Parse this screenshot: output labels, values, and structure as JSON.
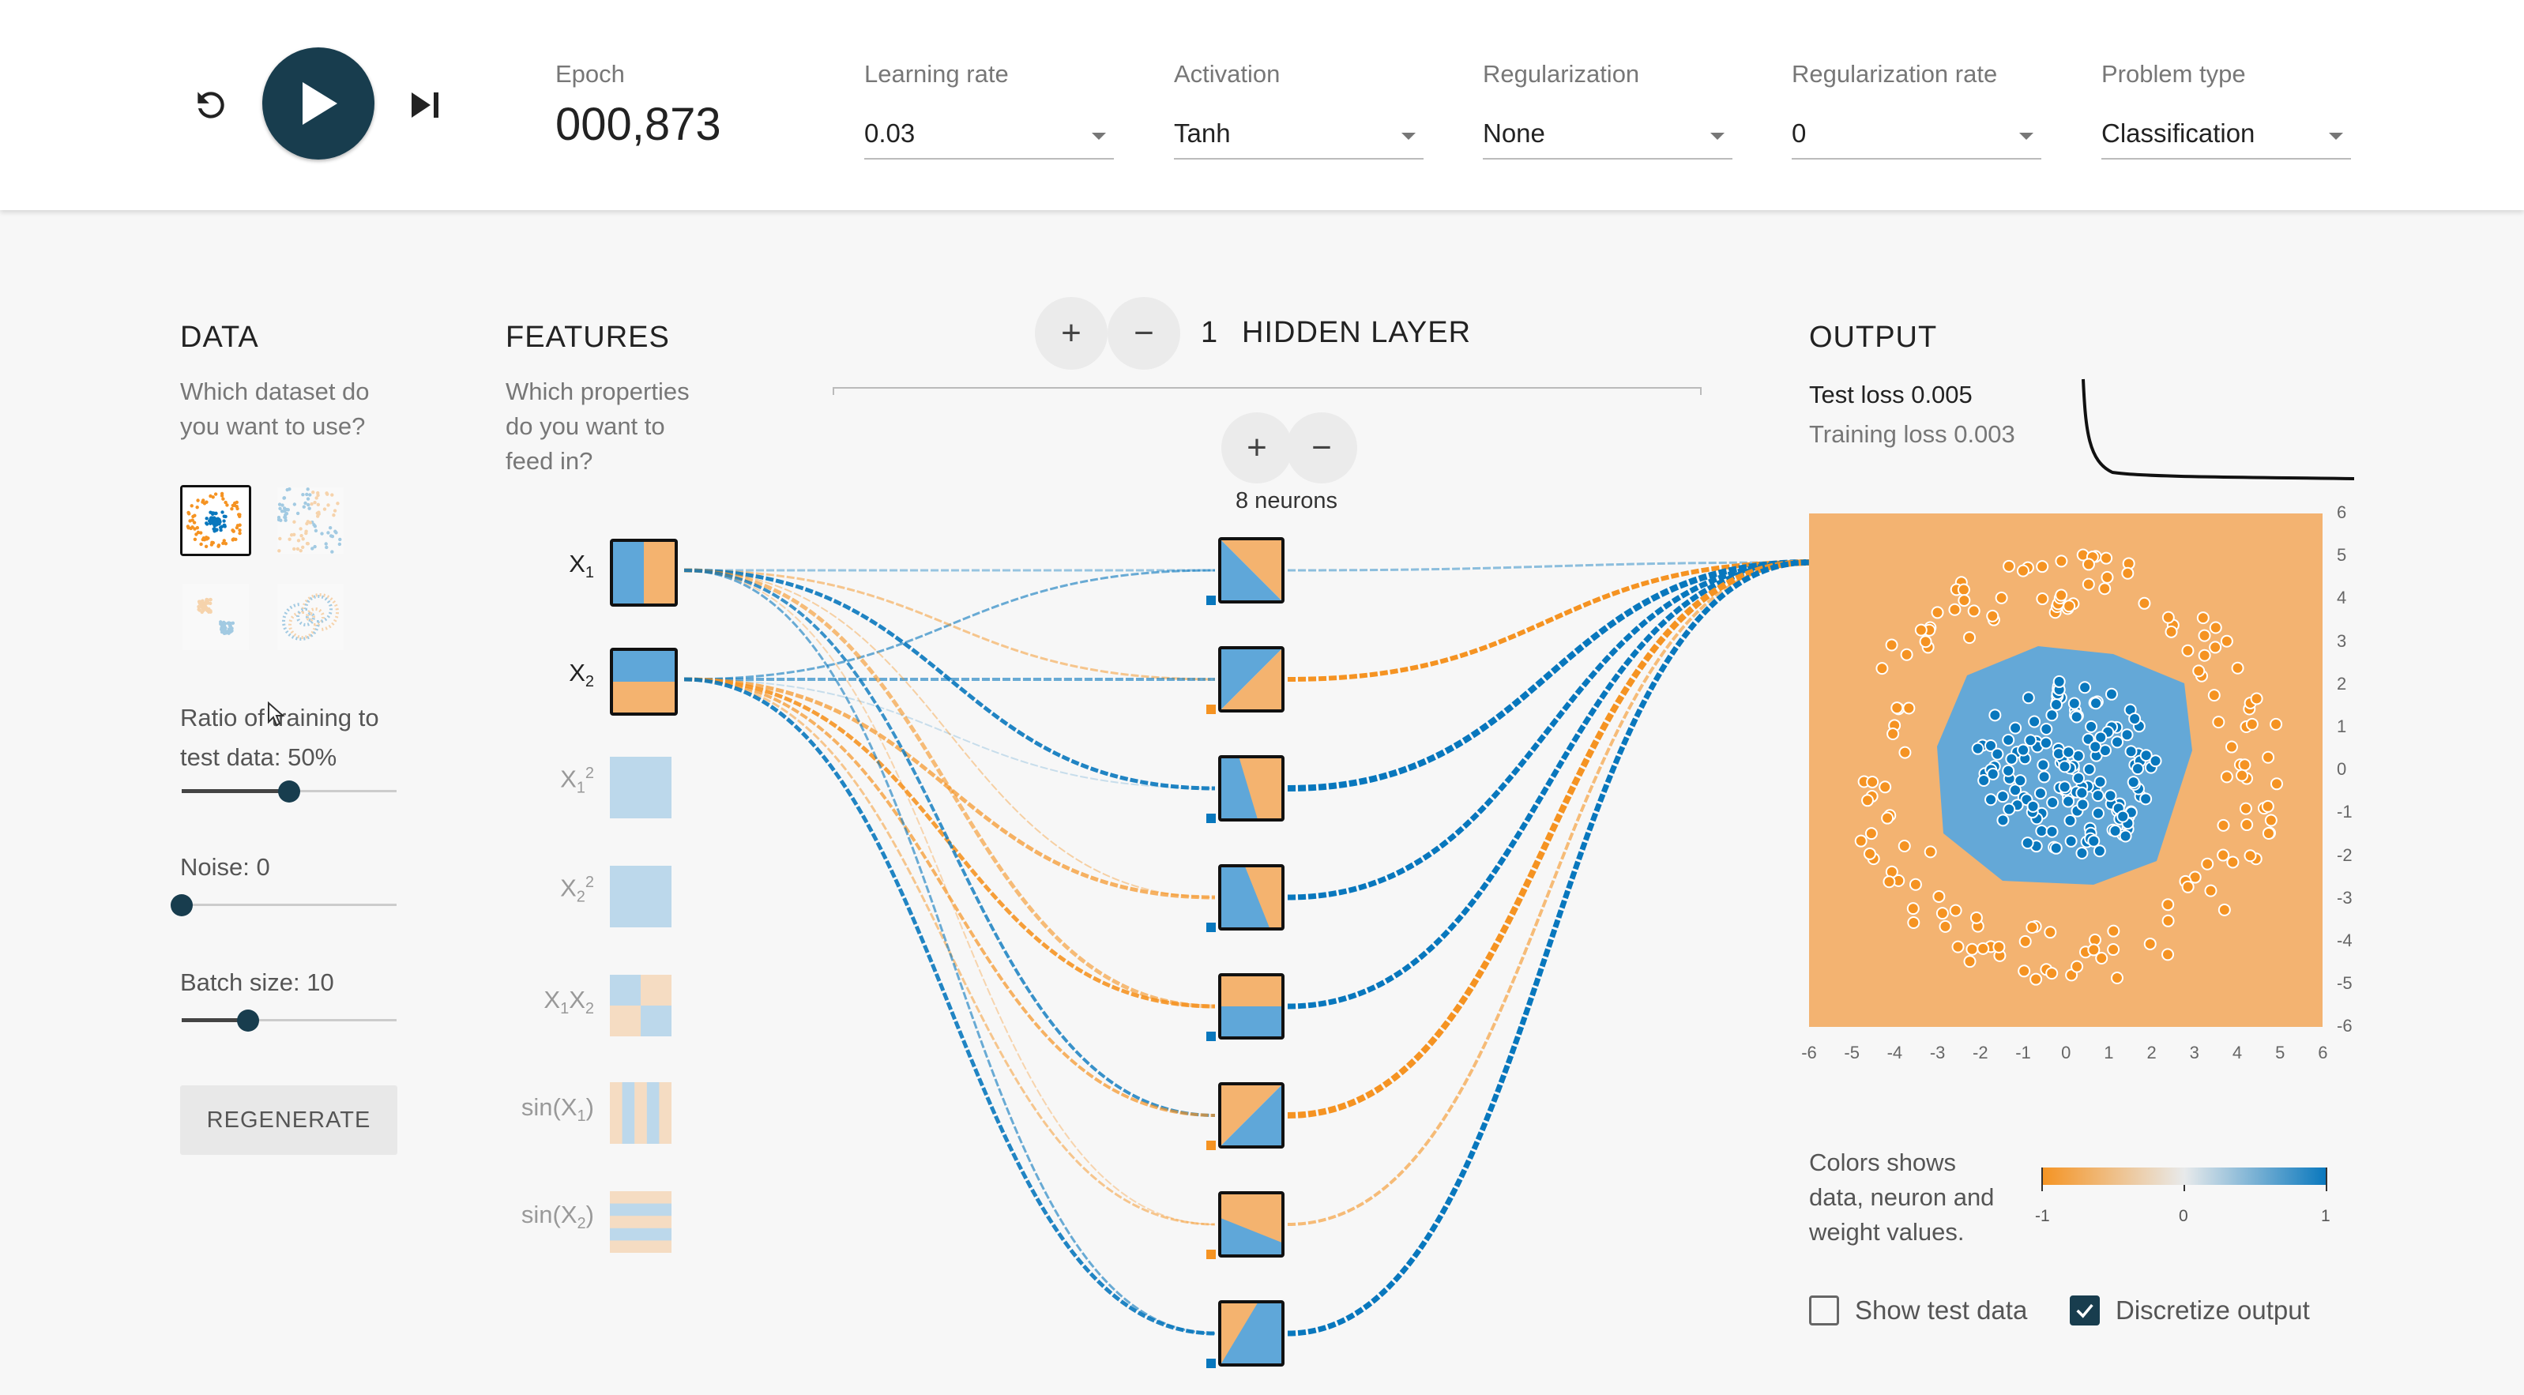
{
  "topbar": {
    "epoch_label": "Epoch",
    "epoch_value": "000,873",
    "learning_rate": {
      "label": "Learning rate",
      "value": "0.03"
    },
    "activation": {
      "label": "Activation",
      "value": "Tanh"
    },
    "regularization": {
      "label": "Regularization",
      "value": "None"
    },
    "regularization_rate": {
      "label": "Regularization rate",
      "value": "0"
    },
    "problem_type": {
      "label": "Problem type",
      "value": "Classification"
    }
  },
  "data_panel": {
    "title": "DATA",
    "subtitle_line1": "Which dataset do",
    "subtitle_line2": "you want to use?",
    "datasets": [
      "circle",
      "xor",
      "gaussian",
      "spiral"
    ],
    "selected_dataset": "circle",
    "ratio_label_line1": "Ratio of training to",
    "ratio_label_line2": "test data:  50%",
    "ratio_percent": 50,
    "noise_label": "Noise:  0",
    "noise_value": 0,
    "batch_label": "Batch size:  10",
    "batch_value": 10,
    "regenerate_label": "REGENERATE"
  },
  "features_panel": {
    "title": "FEATURES",
    "subtitle_line1": "Which properties",
    "subtitle_line2": "do you want to",
    "subtitle_line3": "feed in?",
    "features": [
      {
        "id": "x1",
        "active": true
      },
      {
        "id": "x2",
        "active": true
      },
      {
        "id": "x1sq",
        "active": false
      },
      {
        "id": "x2sq",
        "active": false
      },
      {
        "id": "x1x2",
        "active": false
      },
      {
        "id": "sinx1",
        "active": false
      },
      {
        "id": "sinx2",
        "active": false
      }
    ]
  },
  "network": {
    "hidden_layer_count": "1",
    "hidden_layer_label": "HIDDEN LAYER",
    "neurons_label": "8 neurons",
    "neuron_count": 8
  },
  "output_panel": {
    "title": "OUTPUT",
    "test_loss": "Test loss 0.005",
    "training_loss": "Training loss 0.003",
    "y_ticks": [
      "6",
      "5",
      "4",
      "3",
      "2",
      "1",
      "0",
      "-1",
      "-2",
      "-3",
      "-4",
      "-5",
      "-6"
    ],
    "x_ticks": [
      "-6",
      "-5",
      "-4",
      "-3",
      "-2",
      "-1",
      "0",
      "1",
      "2",
      "3",
      "4",
      "5",
      "6"
    ],
    "legend_line1": "Colors shows",
    "legend_line2": "data, neuron and",
    "legend_line3": "weight values.",
    "legend_ticks": [
      "-1",
      "0",
      "1"
    ],
    "show_test_data": {
      "label": "Show test data",
      "checked": false
    },
    "discretize_output": {
      "label": "Discretize output",
      "checked": true
    }
  },
  "colors": {
    "negative": "#f59322",
    "positive": "#0877bd",
    "play_button": "#183d4e",
    "heat_negative": "#f3b371",
    "heat_positive": "#64a8d7"
  }
}
